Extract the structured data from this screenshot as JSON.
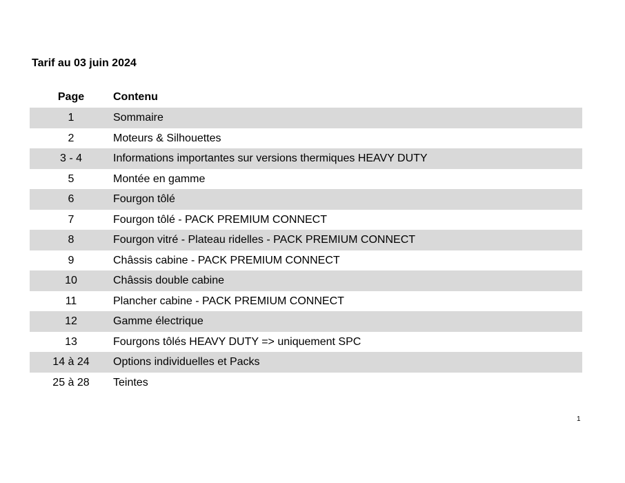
{
  "title": "Tarif au 03 juin 2024",
  "table": {
    "headers": {
      "page": "Page",
      "content": "Contenu"
    },
    "rows": [
      {
        "page": "1",
        "content": "Sommaire"
      },
      {
        "page": "2",
        "content": "Moteurs & Silhouettes"
      },
      {
        "page": "3 - 4",
        "content": "Informations importantes sur versions thermiques HEAVY DUTY"
      },
      {
        "page": "5",
        "content": "Montée en gamme"
      },
      {
        "page": "6",
        "content": "Fourgon tôlé"
      },
      {
        "page": "7",
        "content": "Fourgon tôlé - PACK PREMIUM CONNECT"
      },
      {
        "page": "8",
        "content": "Fourgon vitré - Plateau ridelles - PACK PREMIUM CONNECT"
      },
      {
        "page": "9",
        "content": "Châssis cabine - PACK PREMIUM CONNECT"
      },
      {
        "page": "10",
        "content": "Châssis double cabine"
      },
      {
        "page": "11",
        "content": "Plancher cabine - PACK PREMIUM CONNECT"
      },
      {
        "page": "12",
        "content": "Gamme électrique"
      },
      {
        "page": "13",
        "content": "Fourgons tôlés HEAVY DUTY => uniquement SPC"
      },
      {
        "page": "14 à 24",
        "content": "Options individuelles et Packs"
      },
      {
        "page": "25 à 28",
        "content": "Teintes"
      }
    ],
    "shade_color": "#d9d9d9"
  },
  "page_number": "1"
}
